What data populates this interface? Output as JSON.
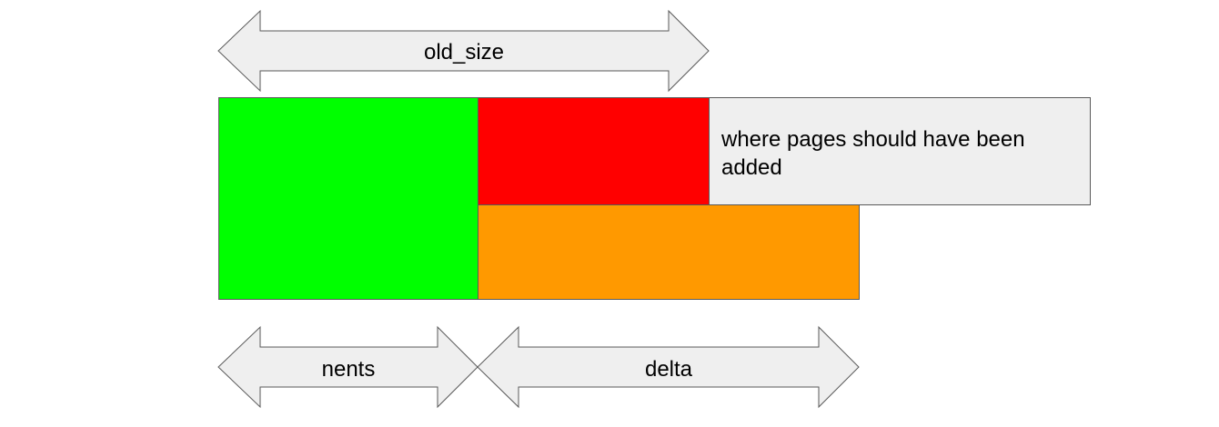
{
  "arrows": {
    "old_size": "old_size",
    "nents": "nents",
    "delta": "delta"
  },
  "note": {
    "line1": "where pages should have been",
    "line2": "added"
  },
  "colors": {
    "nents_block": "#00ff00",
    "old_size_remainder_block": "#ff0000",
    "delta_block": "#ff9900",
    "note_box": "#efefef",
    "arrow_fill": "#efefef",
    "stroke": "#595959"
  }
}
